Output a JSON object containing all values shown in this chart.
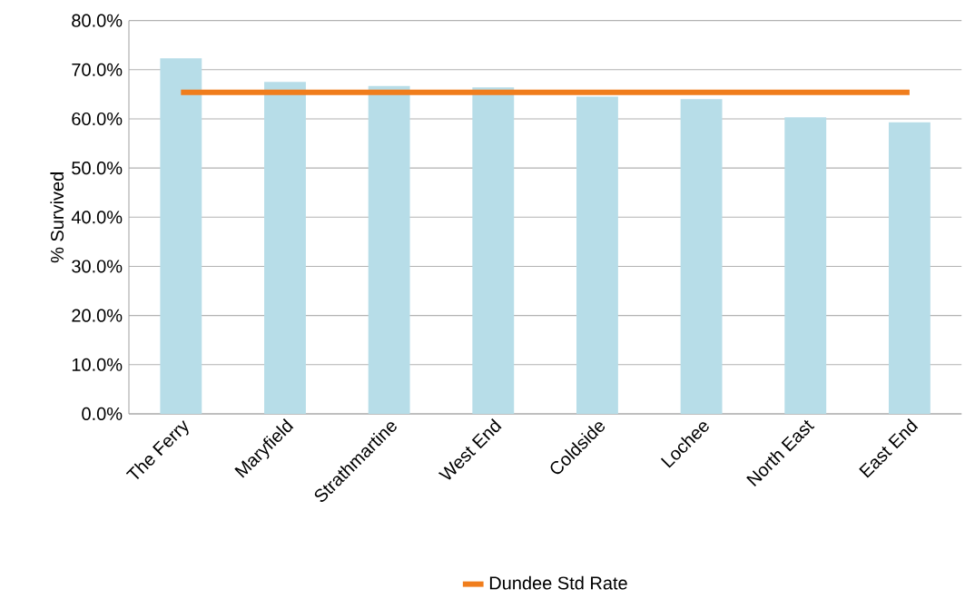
{
  "chart_data": {
    "type": "bar",
    "ylabel": "% Survived",
    "categories": [
      "The Ferry",
      "Maryfield",
      "Strathmartine",
      "West End",
      "Coldside",
      "Lochee",
      "North East",
      "East End"
    ],
    "series": [
      {
        "color": "#b7dde8",
        "values": [
          72.3,
          67.5,
          66.7,
          66.4,
          64.5,
          64.0,
          60.3,
          59.3
        ]
      },
      {
        "name": "Dundee Std Rate",
        "type": "line",
        "color": "#f07d1c",
        "values": [
          65.4,
          65.4,
          65.4,
          65.4,
          65.4,
          65.4,
          65.4,
          65.4
        ]
      }
    ],
    "ylim": [
      0,
      80
    ],
    "yticks": [
      {
        "value": 0,
        "label": "0.0%"
      },
      {
        "value": 10,
        "label": "10.0%"
      },
      {
        "value": 20,
        "label": "20.0%"
      },
      {
        "value": 30,
        "label": "30.0%"
      },
      {
        "value": 40,
        "label": "40.0%"
      },
      {
        "value": 50,
        "label": "50.0%"
      },
      {
        "value": 60,
        "label": "60.0%"
      },
      {
        "value": 70,
        "label": "70.0%"
      },
      {
        "value": 80,
        "label": "80.0%"
      }
    ],
    "grid": "y",
    "legend": "bottom"
  }
}
